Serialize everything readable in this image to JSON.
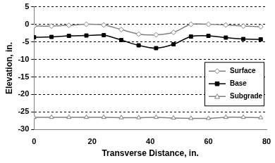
{
  "chart_data": {
    "type": "line",
    "x_label": "Transverse Distance, in.",
    "y_label": "Elevation, in.",
    "x": [
      0,
      6,
      12,
      18,
      24,
      30,
      36,
      42,
      48,
      54,
      60,
      66,
      72,
      78
    ],
    "series": [
      {
        "name": "Surface",
        "color": "#808080",
        "marker": "diamond_open",
        "values": [
          -0.5,
          -0.5,
          -0.3,
          0,
          -0.2,
          -1.5,
          -2.8,
          -3,
          -2.3,
          0,
          0,
          -0.2,
          -0.5,
          -0.7
        ]
      },
      {
        "name": "Base",
        "color": "#000000",
        "marker": "square",
        "values": [
          -3.7,
          -3.6,
          -3.3,
          -3.2,
          -3.1,
          -4.5,
          -6,
          -6.8,
          -5.7,
          -3.5,
          -3.3,
          -3.8,
          -4.2,
          -4.3
        ]
      },
      {
        "name": "Subgrade",
        "color": "#808080",
        "marker": "triangle_open",
        "values": [
          -26.5,
          -26.5,
          -26.5,
          -26.5,
          -26.5,
          -26.6,
          -26.6,
          -26.5,
          -26.7,
          -26.8,
          -26.8,
          -26.5,
          -26.5,
          -26.6
        ]
      }
    ],
    "xlim": [
      0,
      80
    ],
    "xticks": [
      0,
      20,
      40,
      60,
      80
    ],
    "ylim": [
      -30,
      5
    ],
    "yticks": [
      -30,
      -25,
      -20,
      -15,
      -10,
      -5,
      0,
      5
    ],
    "grid": true,
    "legend": "right"
  }
}
